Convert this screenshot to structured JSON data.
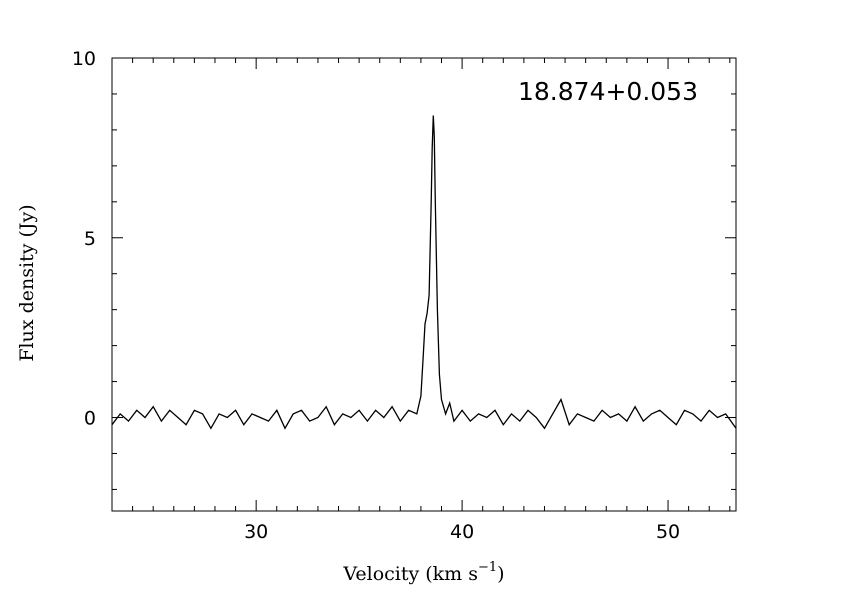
{
  "chart_data": {
    "type": "line",
    "annotation": "18.874+0.053",
    "xlabel": "Velocity (km s",
    "xlabel_sup": "−1",
    "xlabel_close": ")",
    "ylabel": "Flux density (Jy)",
    "xlim": [
      23.0,
      53.3
    ],
    "ylim": [
      -2.6,
      10.0
    ],
    "x_major_ticks": [
      30,
      40,
      50
    ],
    "x_tick_labels": [
      "30",
      "40",
      "50"
    ],
    "x_minor_step": 1,
    "y_major_ticks": [
      0,
      5,
      10
    ],
    "y_tick_labels": [
      "0",
      "5",
      "10"
    ],
    "y_minor_step": 1,
    "grid": false,
    "line_color": "#000000",
    "series": [
      {
        "x": [
          23.0,
          23.4,
          23.8,
          24.2,
          24.6,
          25.0,
          25.4,
          25.8,
          26.2,
          26.6,
          27.0,
          27.4,
          27.8,
          28.2,
          28.6,
          29.0,
          29.4,
          29.8,
          30.2,
          30.6,
          31.0,
          31.4,
          31.8,
          32.2,
          32.6,
          33.0,
          33.4,
          33.8,
          34.2,
          34.6,
          35.0,
          35.4,
          35.8,
          36.2,
          36.6,
          37.0,
          37.4,
          37.8,
          38.0,
          38.1,
          38.2,
          38.3,
          38.4,
          38.5,
          38.55,
          38.6,
          38.65,
          38.7,
          38.8,
          38.9,
          39.0,
          39.2,
          39.4,
          39.6,
          40.0,
          40.4,
          40.8,
          41.2,
          41.6,
          42.0,
          42.4,
          42.8,
          43.2,
          43.6,
          44.0,
          44.4,
          44.8,
          45.2,
          45.6,
          46.0,
          46.4,
          46.8,
          47.2,
          47.6,
          48.0,
          48.4,
          48.8,
          49.2,
          49.6,
          50.0,
          50.4,
          50.8,
          51.2,
          51.6,
          52.0,
          52.4,
          52.8,
          53.3
        ],
        "y": [
          -0.2,
          0.1,
          -0.1,
          0.2,
          0.0,
          0.3,
          -0.1,
          0.2,
          0.0,
          -0.2,
          0.2,
          0.1,
          -0.3,
          0.1,
          0.0,
          0.2,
          -0.2,
          0.1,
          0.0,
          -0.1,
          0.2,
          -0.3,
          0.1,
          0.2,
          -0.1,
          0.0,
          0.3,
          -0.2,
          0.1,
          0.0,
          0.2,
          -0.1,
          0.2,
          0.0,
          0.3,
          -0.1,
          0.2,
          0.1,
          0.6,
          1.6,
          2.6,
          2.9,
          3.4,
          6.0,
          7.5,
          8.4,
          7.8,
          6.0,
          3.0,
          1.2,
          0.5,
          0.1,
          0.4,
          -0.1,
          0.2,
          -0.1,
          0.1,
          0.0,
          0.2,
          -0.2,
          0.1,
          -0.1,
          0.2,
          0.0,
          -0.3,
          0.1,
          0.5,
          -0.2,
          0.1,
          0.0,
          -0.1,
          0.2,
          0.0,
          0.1,
          -0.1,
          0.3,
          -0.1,
          0.1,
          0.2,
          0.0,
          -0.2,
          0.2,
          0.1,
          -0.1,
          0.2,
          0.0,
          0.1,
          -0.3
        ]
      }
    ]
  }
}
